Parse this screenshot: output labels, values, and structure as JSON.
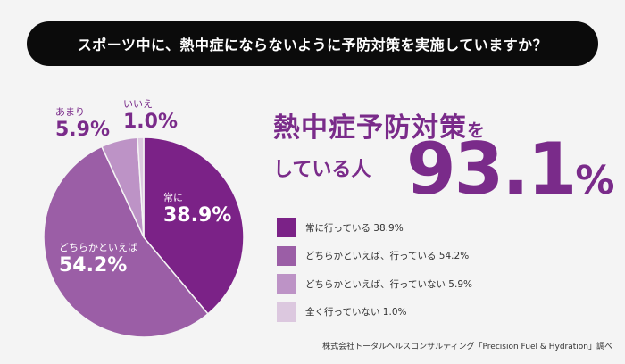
{
  "question": "スポーツ中に、熱中症にならないように予防対策を実施していますか？",
  "chart_data": {
    "type": "pie",
    "categories": [
      "常に行っている",
      "どちらかといえば、行っている",
      "どちらかといえば、行っていない",
      "全く行っていない"
    ],
    "values": [
      38.9,
      54.2,
      5.9,
      1.0
    ],
    "colors": [
      "#7b2287",
      "#9b5ea6",
      "#bd93c6",
      "#dcc8df"
    ],
    "slice_labels": [
      {
        "name": "常に",
        "value": "38.9%"
      },
      {
        "name": "どちらかといえば",
        "value": "54.2%"
      },
      {
        "name": "あまり",
        "value": "5.9%"
      },
      {
        "name": "いいえ",
        "value": "1.0%"
      }
    ],
    "legend": [
      "常に行っている 38.9%",
      "どちらかといえば、行っている 54.2%",
      "どちらかといえば、行っていない 5.9%",
      "全く行っていない  1.0%"
    ]
  },
  "headline": {
    "line1_main": "熱中症予防対策",
    "line1_suffix": "を",
    "line2": "している人",
    "value": "93.1",
    "unit": "%"
  },
  "source": "株式会社トータルヘルスコンサルティング「Precision Fuel & Hydration」調べ"
}
